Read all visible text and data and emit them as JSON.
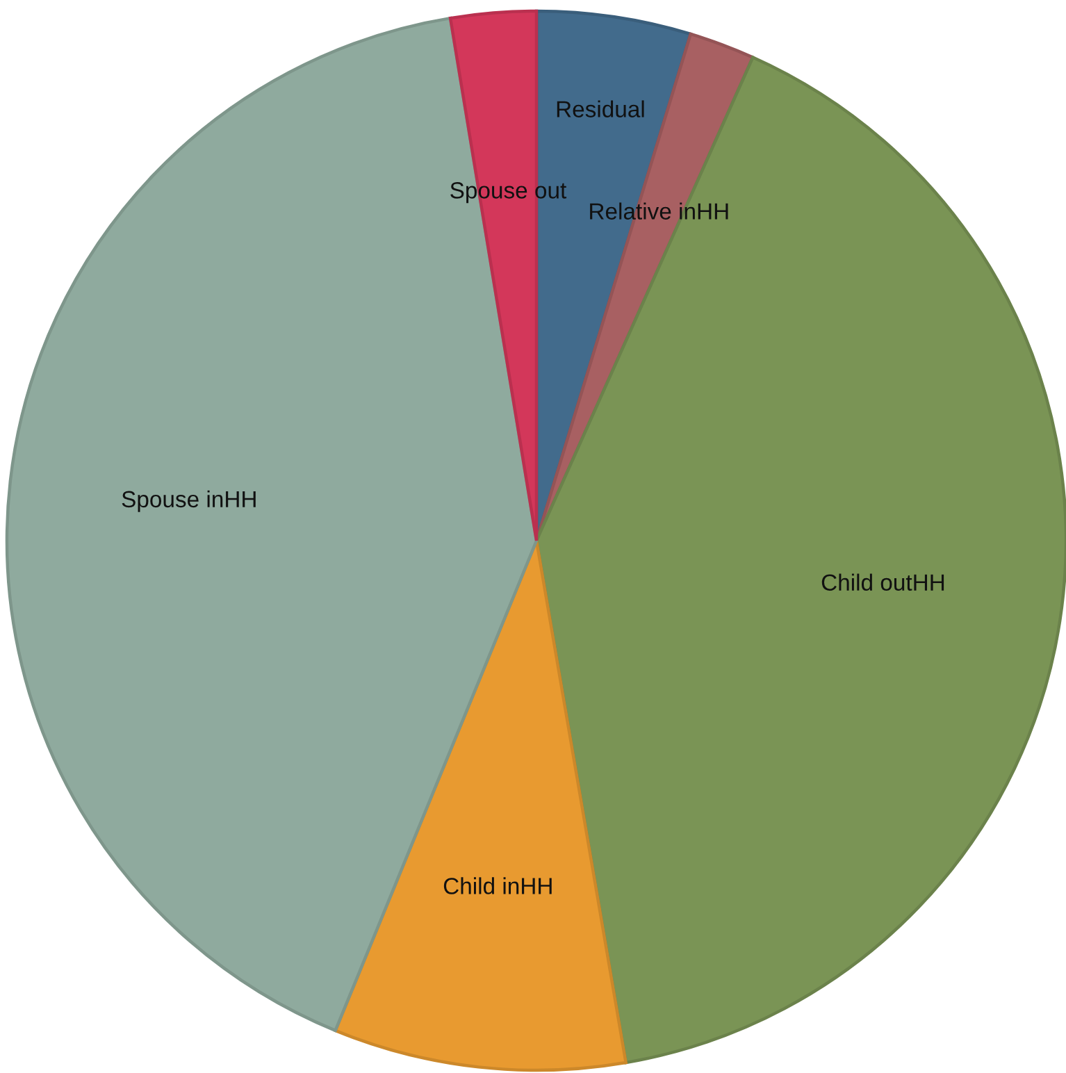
{
  "chart_data": {
    "type": "pie",
    "categories": [
      "Residual",
      "Relative inHH",
      "Child outHH",
      "Child inHH",
      "Spouse inHH",
      "Spouse out"
    ],
    "values": [
      4.7,
      2.0,
      40.6,
      8.9,
      41.2,
      2.6
    ],
    "colors": [
      "#426b8c",
      "#a86062",
      "#7a9455",
      "#e89a30",
      "#8faa9e",
      "#d3375a"
    ]
  }
}
